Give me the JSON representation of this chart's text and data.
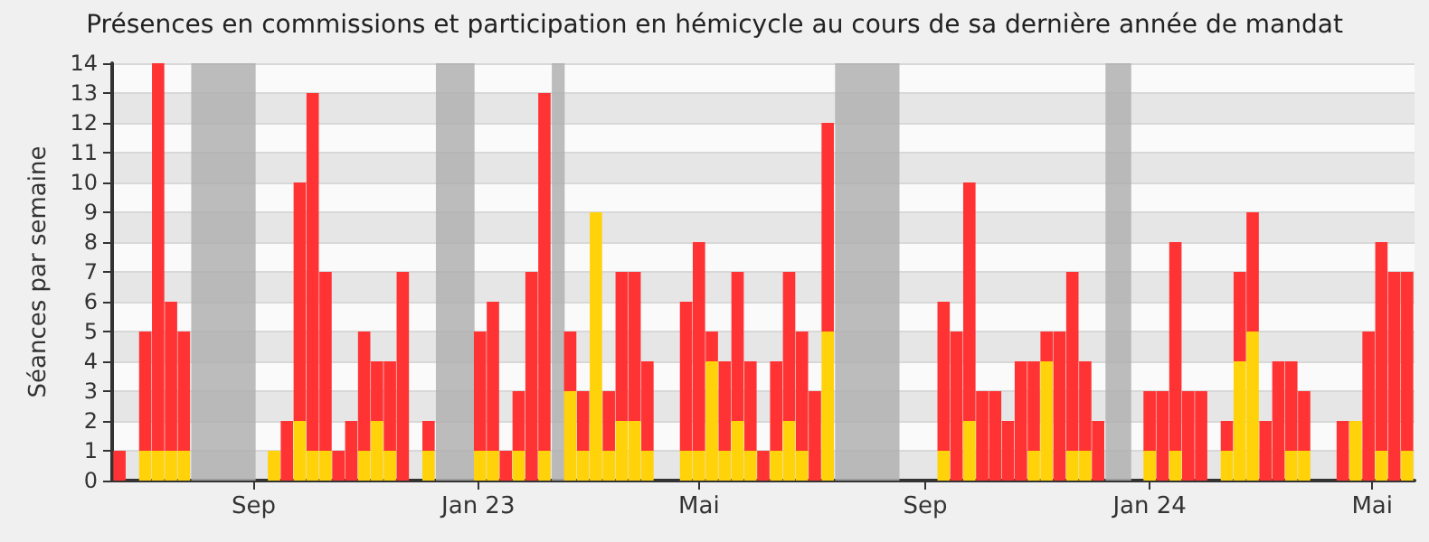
{
  "chart_data": {
    "type": "bar",
    "stacked": true,
    "title": "Présences en commissions et participation en hémicycle au cours de sa dernière année de mandat",
    "ylabel": "Séances par semaine",
    "x": [
      "2022-06-20",
      "2022-06-27",
      "2022-07-04",
      "2022-07-11",
      "2022-07-18",
      "2022-07-25",
      "2022-08-01",
      "2022-08-08",
      "2022-08-15",
      "2022-08-22",
      "2022-08-29",
      "2022-09-05",
      "2022-09-12",
      "2022-09-19",
      "2022-09-26",
      "2022-10-03",
      "2022-10-10",
      "2022-10-17",
      "2022-10-24",
      "2022-10-31",
      "2022-11-07",
      "2022-11-14",
      "2022-11-21",
      "2022-11-28",
      "2022-12-05",
      "2022-12-12",
      "2022-12-19",
      "2022-12-26",
      "2023-01-02",
      "2023-01-09",
      "2023-01-16",
      "2023-01-23",
      "2023-01-30",
      "2023-02-06",
      "2023-02-13",
      "2023-02-20",
      "2023-02-27",
      "2023-03-06",
      "2023-03-13",
      "2023-03-20",
      "2023-03-27",
      "2023-04-03",
      "2023-04-10",
      "2023-04-17",
      "2023-04-24",
      "2023-05-01",
      "2023-05-08",
      "2023-05-15",
      "2023-05-22",
      "2023-05-29",
      "2023-06-05",
      "2023-06-12",
      "2023-06-19",
      "2023-06-26",
      "2023-07-03",
      "2023-07-10",
      "2023-07-17",
      "2023-07-24",
      "2023-07-31",
      "2023-08-07",
      "2023-08-14",
      "2023-08-21",
      "2023-08-28",
      "2023-09-04",
      "2023-09-11",
      "2023-09-18",
      "2023-09-25",
      "2023-10-02",
      "2023-10-09",
      "2023-10-16",
      "2023-10-23",
      "2023-10-30",
      "2023-11-06",
      "2023-11-13",
      "2023-11-20",
      "2023-11-27",
      "2023-12-04",
      "2023-12-11",
      "2023-12-18",
      "2023-12-25",
      "2024-01-01",
      "2024-01-08",
      "2024-01-15",
      "2024-01-22",
      "2024-01-29",
      "2024-02-05",
      "2024-02-12",
      "2024-02-19",
      "2024-02-26",
      "2024-03-04",
      "2024-03-11",
      "2024-03-18",
      "2024-03-25",
      "2024-04-01",
      "2024-04-08",
      "2024-04-15",
      "2024-04-22",
      "2024-04-29",
      "2024-05-06",
      "2024-05-13",
      "2024-05-20"
    ],
    "series": [
      {
        "color": "#ffd20a",
        "values": [
          0,
          0,
          1,
          1,
          1,
          1,
          0,
          0,
          0,
          0,
          0,
          0,
          1,
          0,
          2,
          1,
          1,
          0,
          0,
          1,
          2,
          1,
          0,
          0,
          1,
          0,
          0,
          0,
          1,
          1,
          0,
          1,
          0,
          1,
          0,
          3,
          1,
          9,
          1,
          2,
          2,
          1,
          0,
          0,
          1,
          1,
          4,
          1,
          2,
          1,
          0,
          1,
          2,
          1,
          0,
          5,
          0,
          0,
          0,
          0,
          0,
          0,
          0,
          0,
          1,
          0,
          2,
          0,
          0,
          0,
          0,
          1,
          4,
          0,
          1,
          1,
          0,
          0,
          0,
          0,
          1,
          0,
          1,
          0,
          0,
          0,
          1,
          4,
          5,
          0,
          0,
          1,
          1,
          0,
          0,
          0,
          2,
          0,
          1,
          0,
          1
        ]
      },
      {
        "color": "#ff3333",
        "values": [
          1,
          0,
          4,
          13,
          5,
          4,
          0,
          0,
          0,
          0,
          0,
          0,
          0,
          2,
          8,
          12,
          6,
          1,
          2,
          4,
          2,
          3,
          7,
          0,
          1,
          0,
          0,
          0,
          4,
          5,
          1,
          2,
          7,
          12,
          0,
          2,
          2,
          0,
          2,
          5,
          5,
          3,
          0,
          0,
          5,
          7,
          1,
          3,
          5,
          3,
          1,
          3,
          5,
          4,
          3,
          7,
          0,
          0,
          0,
          0,
          0,
          0,
          0,
          0,
          5,
          5,
          8,
          3,
          3,
          2,
          4,
          3,
          1,
          5,
          6,
          3,
          2,
          0,
          0,
          0,
          2,
          3,
          7,
          3,
          3,
          0,
          1,
          3,
          4,
          2,
          4,
          3,
          2,
          0,
          0,
          2,
          0,
          5,
          7,
          7,
          6
        ]
      }
    ],
    "xlim": [
      "2022-06-16",
      "2024-05-24"
    ],
    "xticks": [
      {
        "value": "2022-09-01",
        "label": "Sep"
      },
      {
        "value": "2023-01-01",
        "label": "Jan 23"
      },
      {
        "value": "2023-05-01",
        "label": "Mai"
      },
      {
        "value": "2023-09-01",
        "label": "Sep"
      },
      {
        "value": "2024-01-01",
        "label": "Jan 24"
      },
      {
        "value": "2024-05-01",
        "label": "Mai"
      }
    ],
    "ylim": [
      0,
      14
    ],
    "yticks": [
      0,
      1,
      2,
      3,
      4,
      5,
      6,
      7,
      8,
      9,
      10,
      11,
      12,
      13,
      14
    ],
    "bands": [
      {
        "axis": "x",
        "from": "2022-07-29",
        "to": "2022-09-02",
        "color": "#b0b0b0"
      },
      {
        "axis": "x",
        "from": "2022-12-09",
        "to": "2022-12-30",
        "color": "#b0b0b0"
      },
      {
        "axis": "x",
        "from": "2023-02-10",
        "to": "2023-02-17",
        "color": "#b0b0b0"
      },
      {
        "axis": "x",
        "from": "2023-07-14",
        "to": "2023-08-18",
        "color": "#b0b0b0"
      },
      {
        "axis": "x",
        "from": "2023-12-08",
        "to": "2023-12-22",
        "color": "#b0b0b0"
      }
    ],
    "grid": "y"
  }
}
